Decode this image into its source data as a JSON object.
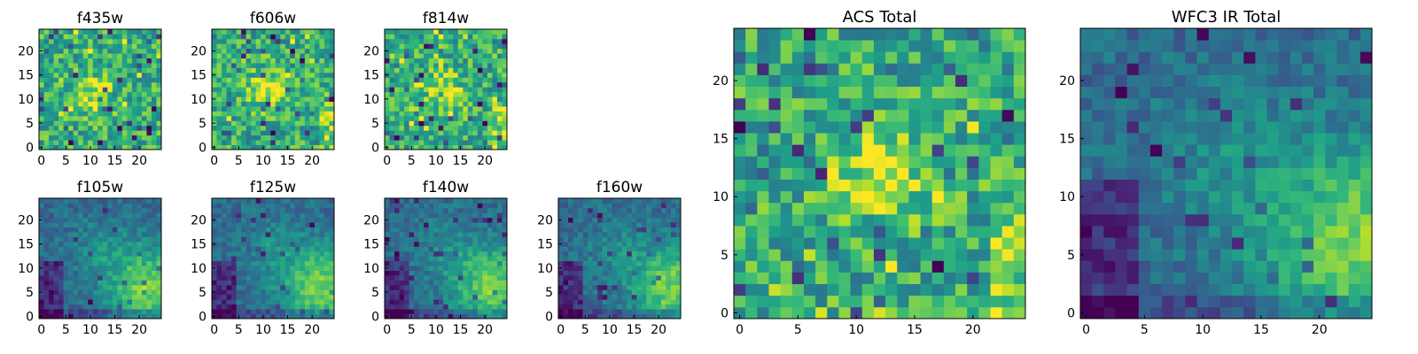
{
  "chart_data": [
    {
      "type": "heatmap",
      "title": "f435w",
      "xticks": [
        "0",
        "5",
        "10",
        "15",
        "20"
      ],
      "yticks": [
        "0",
        "5",
        "10",
        "15",
        "20"
      ],
      "xlim": [
        -0.5,
        24.5
      ],
      "ylim": [
        -0.5,
        24.5
      ],
      "grid": false,
      "colormap": "viridis",
      "dominant": "noisy green, scattered dark and bright pixels",
      "hot_center": [
        11,
        11
      ]
    },
    {
      "type": "heatmap",
      "title": "f606w",
      "xticks": [
        "0",
        "5",
        "10",
        "15",
        "20"
      ],
      "yticks": [
        "0",
        "5",
        "10",
        "15",
        "20"
      ],
      "xlim": [
        -0.5,
        24.5
      ],
      "ylim": [
        -0.5,
        24.5
      ],
      "grid": false,
      "colormap": "viridis",
      "dominant": "noisy green, bright blob near center",
      "hot_center": [
        11,
        12
      ]
    },
    {
      "type": "heatmap",
      "title": "f814w",
      "xticks": [
        "0",
        "5",
        "10",
        "15",
        "20"
      ],
      "yticks": [
        "0",
        "5",
        "10",
        "15",
        "20"
      ],
      "xlim": [
        -0.5,
        24.5
      ],
      "ylim": [
        -0.5,
        24.5
      ],
      "grid": false,
      "colormap": "viridis",
      "dominant": "noisy green, bright streak near center",
      "hot_center": [
        12,
        12
      ]
    },
    {
      "type": "heatmap",
      "title": "f105w",
      "xticks": [
        "0",
        "5",
        "10",
        "15",
        "20"
      ],
      "yticks": [
        "0",
        "5",
        "10",
        "15",
        "20"
      ],
      "xlim": [
        -0.5,
        24.5
      ],
      "ylim": [
        -0.5,
        24.5
      ],
      "grid": false,
      "colormap": "viridis",
      "dominant": "smooth gradient, bright at lower right, dark at left",
      "hot_center": [
        22,
        6
      ]
    },
    {
      "type": "heatmap",
      "title": "f125w",
      "xticks": [
        "0",
        "5",
        "10",
        "15",
        "20"
      ],
      "yticks": [
        "0",
        "5",
        "10",
        "15",
        "20"
      ],
      "xlim": [
        -0.5,
        24.5
      ],
      "ylim": [
        -0.5,
        24.5
      ],
      "grid": false,
      "colormap": "viridis",
      "dominant": "smooth gradient, bright at lower right",
      "hot_center": [
        22,
        6
      ]
    },
    {
      "type": "heatmap",
      "title": "f140w",
      "xticks": [
        "0",
        "5",
        "10",
        "15",
        "20"
      ],
      "yticks": [
        "0",
        "5",
        "10",
        "15",
        "20"
      ],
      "xlim": [
        -0.5,
        24.5
      ],
      "ylim": [
        -0.5,
        24.5
      ],
      "grid": false,
      "colormap": "viridis",
      "dominant": "smooth gradient, bright at lower right",
      "hot_center": [
        22,
        6
      ]
    },
    {
      "type": "heatmap",
      "title": "f160w",
      "xticks": [
        "0",
        "5",
        "10",
        "15",
        "20"
      ],
      "yticks": [
        "0",
        "5",
        "10",
        "15",
        "20"
      ],
      "xlim": [
        -0.5,
        24.5
      ],
      "ylim": [
        -0.5,
        24.5
      ],
      "grid": false,
      "colormap": "viridis",
      "dominant": "smooth gradient, bright at right edge",
      "hot_center": [
        23,
        6
      ]
    },
    {
      "type": "heatmap",
      "title": "ACS Total",
      "xticks": [
        "0",
        "5",
        "10",
        "15",
        "20"
      ],
      "yticks": [
        "0",
        "5",
        "10",
        "15",
        "20"
      ],
      "xlim": [
        -0.5,
        24.5
      ],
      "ylim": [
        -0.5,
        24.5
      ],
      "grid": false,
      "colormap": "viridis",
      "dominant": "noisy green, bright central blob and bright right edge",
      "hot_center": [
        12,
        12
      ]
    },
    {
      "type": "heatmap",
      "title": "WFC3 IR Total",
      "xticks": [
        "0",
        "5",
        "10",
        "15",
        "20"
      ],
      "yticks": [
        "0",
        "5",
        "10",
        "15",
        "20"
      ],
      "xlim": [
        -0.5,
        24.5
      ],
      "ylim": [
        -0.5,
        24.5
      ],
      "grid": false,
      "colormap": "viridis",
      "dominant": "smooth gradient, bright at lower right, dark at lower left",
      "hot_center": [
        23,
        6
      ]
    }
  ]
}
